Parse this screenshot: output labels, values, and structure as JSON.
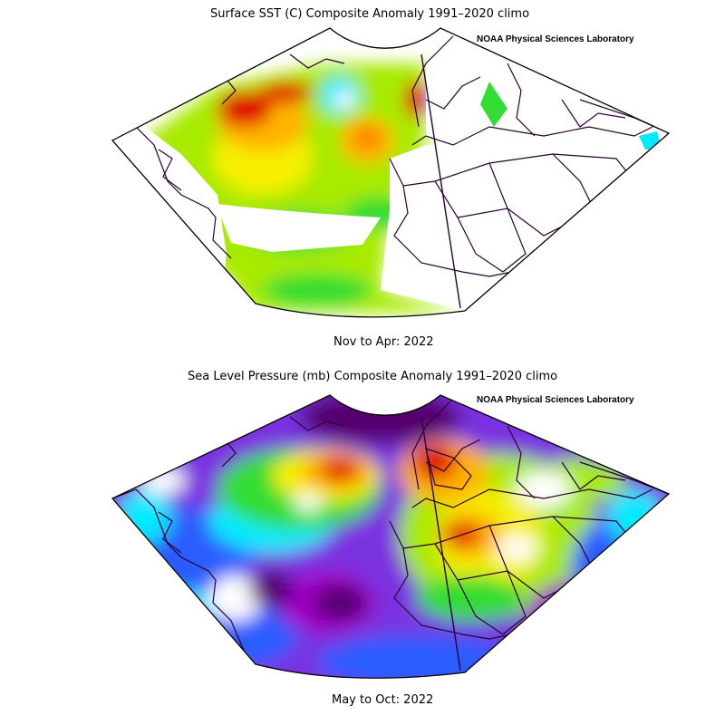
{
  "panels": [
    {
      "title": "Surface SST (C) Composite Anomaly 1991–2020 climo",
      "credit": "NOAA Physical Sciences Laboratory",
      "period": "Nov to Apr: 2022"
    },
    {
      "title": "Sea Level Pressure (mb) Composite Anomaly 1991–2020 climo",
      "credit": "NOAA Physical Sciences Laboratory",
      "period": "May to Oct: 2022"
    }
  ],
  "colors": {
    "red": "#e00000",
    "orange": "#ff7a00",
    "amber": "#ffb400",
    "yellow": "#f5f000",
    "lime": "#a8ea00",
    "green": "#33dd33",
    "cyan": "#00eaff",
    "blue": "#2a5cff",
    "violet": "#8a2be2",
    "purple": "#a000c8",
    "darkpurple": "#560070",
    "white": "#ffffff",
    "border": "#2a0033"
  }
}
